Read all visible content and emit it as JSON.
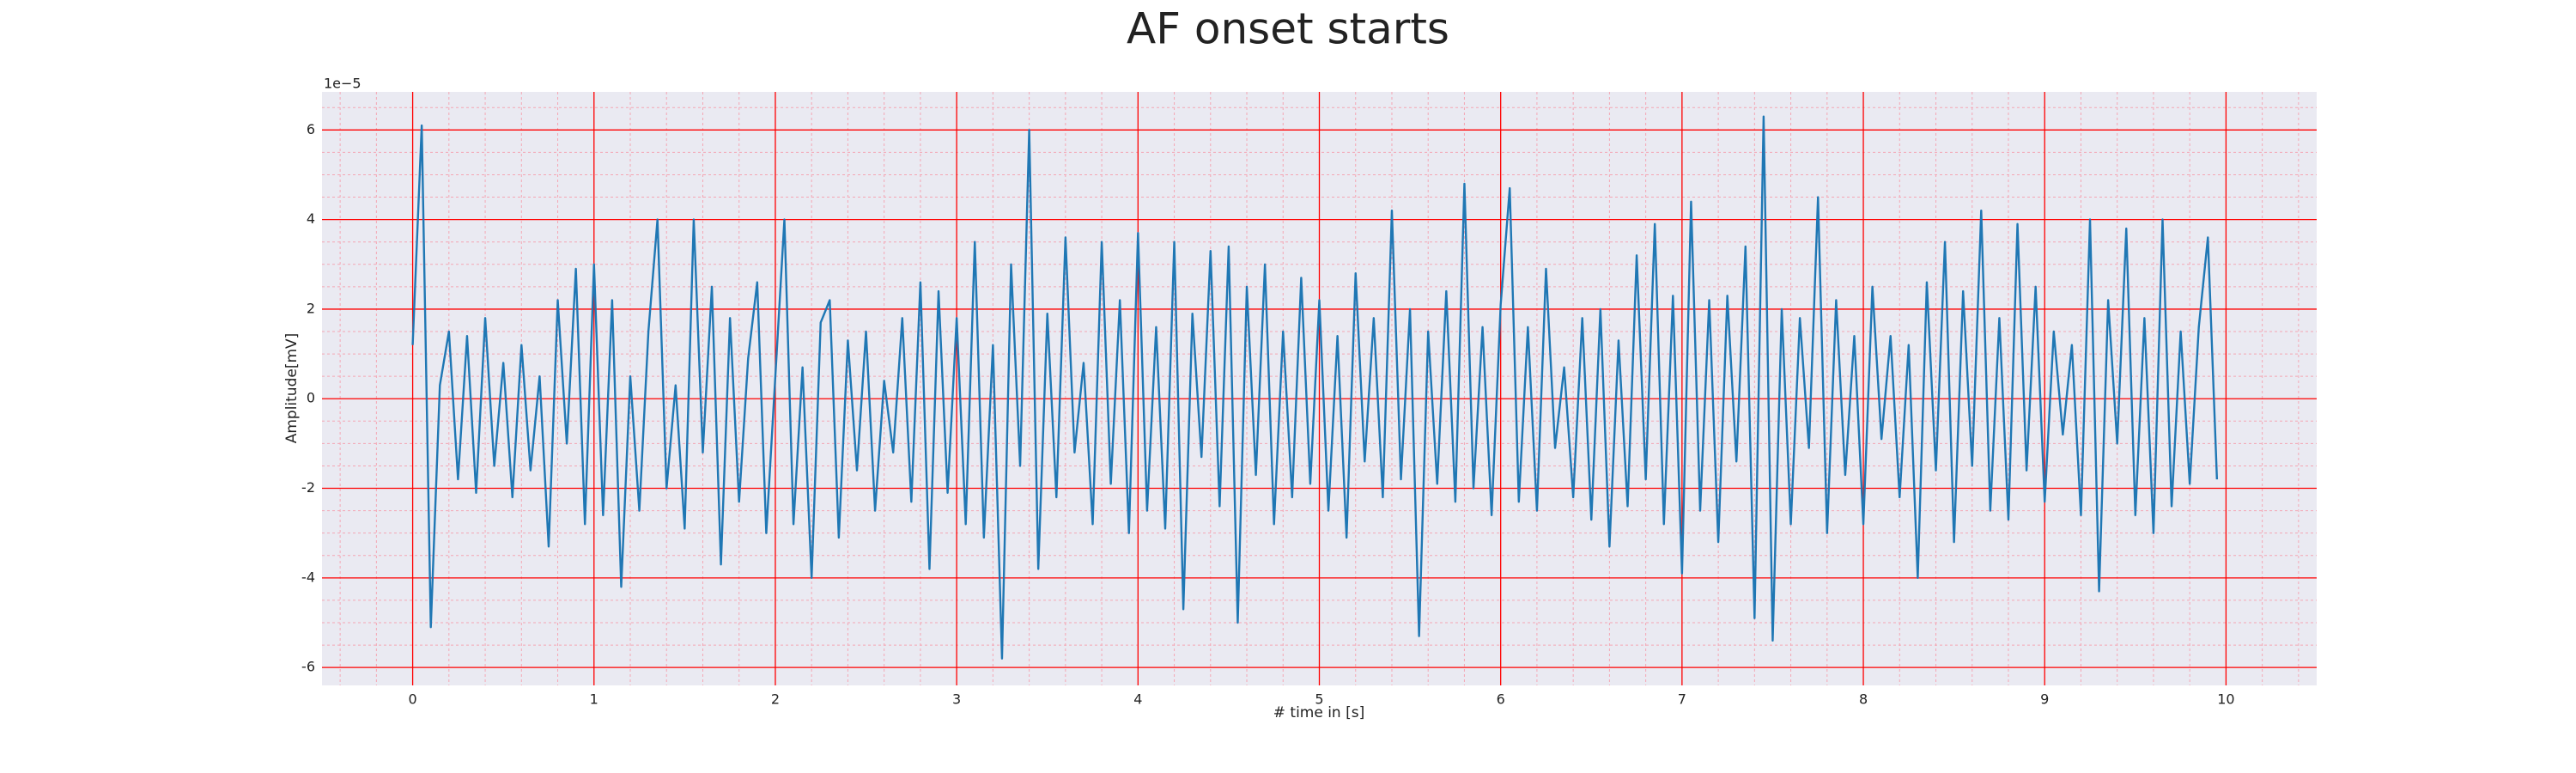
{
  "chart_data": {
    "type": "line",
    "title": "AF onset starts",
    "xlabel": "# time in [s]",
    "ylabel": "Amplitude[mV]",
    "y_offset_label": "1e−5",
    "xlim": [
      -0.5,
      10.5
    ],
    "ylim": [
      -6.4,
      6.85
    ],
    "xticks": [
      0,
      1,
      2,
      3,
      4,
      5,
      6,
      7,
      8,
      9,
      10
    ],
    "yticks": [
      -6,
      -4,
      -2,
      0,
      2,
      4,
      6
    ],
    "xminorticks": [
      -0.4,
      -0.2,
      0.2,
      0.4,
      0.6,
      0.8,
      1.2,
      1.4,
      1.6,
      1.8,
      2.2,
      2.4,
      2.6,
      2.8,
      3.2,
      3.4,
      3.6,
      3.8,
      4.2,
      4.4,
      4.6,
      4.8,
      5.2,
      5.4,
      5.6,
      5.8,
      6.2,
      6.4,
      6.6,
      6.8,
      7.2,
      7.4,
      7.6,
      7.8,
      8.2,
      8.4,
      8.6,
      8.8,
      9.2,
      9.4,
      9.6,
      9.8,
      10.2,
      10.4
    ],
    "yminorticks": [
      -5.5,
      -5,
      -4.5,
      -3.5,
      -3,
      -2.5,
      -1.5,
      -1,
      -0.5,
      0.5,
      1,
      1.5,
      2.5,
      3,
      3.5,
      4.5,
      5,
      5.5,
      6.5
    ],
    "grid": true,
    "grid_color": "#ff0000",
    "minor_grid_color": "#f4a6b4",
    "background": "#eaeaf2",
    "series": [
      {
        "color": "#1f77b4",
        "x": [
          0,
          0.05,
          0.1,
          0.15,
          0.2,
          0.25,
          0.3,
          0.35,
          0.4,
          0.45,
          0.5,
          0.55,
          0.6,
          0.65,
          0.7,
          0.75,
          0.8,
          0.85,
          0.9,
          0.95,
          1,
          1.05,
          1.1,
          1.15,
          1.2,
          1.25,
          1.3,
          1.35,
          1.4,
          1.45,
          1.5,
          1.55,
          1.6,
          1.65,
          1.7,
          1.75,
          1.8,
          1.85,
          1.9,
          1.95,
          2,
          2.05,
          2.1,
          2.15,
          2.2,
          2.25,
          2.3,
          2.35,
          2.4,
          2.45,
          2.5,
          2.55,
          2.6,
          2.65,
          2.7,
          2.75,
          2.8,
          2.85,
          2.9,
          2.95,
          3,
          3.05,
          3.1,
          3.15,
          3.2,
          3.25,
          3.3,
          3.35,
          3.4,
          3.45,
          3.5,
          3.55,
          3.6,
          3.65,
          3.7,
          3.75,
          3.8,
          3.85,
          3.9,
          3.95,
          4,
          4.05,
          4.1,
          4.15,
          4.2,
          4.25,
          4.3,
          4.35,
          4.4,
          4.45,
          4.5,
          4.55,
          4.6,
          4.65,
          4.7,
          4.75,
          4.8,
          4.85,
          4.9,
          4.95,
          5,
          5.05,
          5.1,
          5.15,
          5.2,
          5.25,
          5.3,
          5.35,
          5.4,
          5.45,
          5.5,
          5.55,
          5.6,
          5.65,
          5.7,
          5.75,
          5.8,
          5.85,
          5.9,
          5.95,
          6,
          6.05,
          6.1,
          6.15,
          6.2,
          6.25,
          6.3,
          6.35,
          6.4,
          6.45,
          6.5,
          6.55,
          6.6,
          6.65,
          6.7,
          6.75,
          6.8,
          6.85,
          6.9,
          6.95,
          7,
          7.05,
          7.1,
          7.15,
          7.2,
          7.25,
          7.3,
          7.35,
          7.4,
          7.45,
          7.5,
          7.55,
          7.6,
          7.65,
          7.7,
          7.75,
          7.8,
          7.85,
          7.9,
          7.95,
          8,
          8.05,
          8.1,
          8.15,
          8.2,
          8.25,
          8.3,
          8.35,
          8.4,
          8.45,
          8.5,
          8.55,
          8.6,
          8.65,
          8.7,
          8.75,
          8.8,
          8.85,
          8.9,
          8.95,
          9,
          9.05,
          9.1,
          9.15,
          9.2,
          9.25,
          9.3,
          9.35,
          9.4,
          9.45,
          9.5,
          9.55,
          9.6,
          9.65,
          9.7,
          9.75,
          9.8,
          9.85,
          9.9,
          9.95
        ],
        "values": [
          1.2,
          6.1,
          -5.1,
          0.3,
          1.5,
          -1.8,
          1.4,
          -2.1,
          1.8,
          -1.5,
          0.8,
          -2.2,
          1.2,
          -1.6,
          0.5,
          -3.3,
          2.2,
          -1.0,
          2.9,
          -2.8,
          3.0,
          -2.6,
          2.2,
          -4.2,
          0.5,
          -2.5,
          1.5,
          4.0,
          -2.0,
          0.3,
          -2.9,
          4.0,
          -1.2,
          2.5,
          -3.7,
          1.8,
          -2.3,
          0.9,
          2.6,
          -3.0,
          0.5,
          4.0,
          -2.8,
          0.7,
          -4.0,
          1.7,
          2.2,
          -3.1,
          1.3,
          -1.6,
          1.5,
          -2.5,
          0.4,
          -1.2,
          1.8,
          -2.3,
          2.6,
          -3.8,
          2.4,
          -2.1,
          1.8,
          -2.8,
          3.5,
          -3.1,
          1.2,
          -5.8,
          3.0,
          -1.5,
          6.0,
          -3.8,
          1.9,
          -2.2,
          3.6,
          -1.2,
          0.8,
          -2.8,
          3.5,
          -1.9,
          2.2,
          -3.0,
          3.7,
          -2.5,
          1.6,
          -2.9,
          3.5,
          -4.7,
          1.9,
          -1.3,
          3.3,
          -2.4,
          3.4,
          -5.0,
          2.5,
          -1.7,
          3.0,
          -2.8,
          1.5,
          -2.2,
          2.7,
          -1.9,
          2.2,
          -2.5,
          1.4,
          -3.1,
          2.8,
          -1.4,
          1.8,
          -2.2,
          4.2,
          -1.8,
          2.0,
          -5.3,
          1.5,
          -1.9,
          2.4,
          -2.3,
          4.8,
          -2.0,
          1.6,
          -2.6,
          2.1,
          4.7,
          -2.3,
          1.6,
          -2.5,
          2.9,
          -1.1,
          0.7,
          -2.2,
          1.8,
          -2.7,
          2.0,
          -3.3,
          1.3,
          -2.4,
          3.2,
          -1.8,
          3.9,
          -2.8,
          2.3,
          -3.9,
          4.4,
          -2.5,
          2.2,
          -3.2,
          2.3,
          -1.4,
          3.4,
          -4.9,
          6.3,
          -5.4,
          2.0,
          -2.8,
          1.8,
          -1.1,
          4.5,
          -3.0,
          2.2,
          -1.7,
          1.4,
          -2.8,
          2.5,
          -0.9,
          1.4,
          -2.2,
          1.2,
          -4.0,
          2.6,
          -1.6,
          3.5,
          -3.2,
          2.4,
          -1.5,
          4.2,
          -2.5,
          1.8,
          -2.7,
          3.9,
          -1.6,
          2.5,
          -2.3,
          1.5,
          -0.8,
          1.2,
          -2.6,
          4.0,
          -4.3,
          2.2,
          -1.0,
          3.8,
          -2.6,
          1.8,
          -3.0,
          4.0,
          -2.4,
          1.5,
          -1.9,
          1.6,
          3.6,
          -1.8
        ]
      }
    ]
  }
}
